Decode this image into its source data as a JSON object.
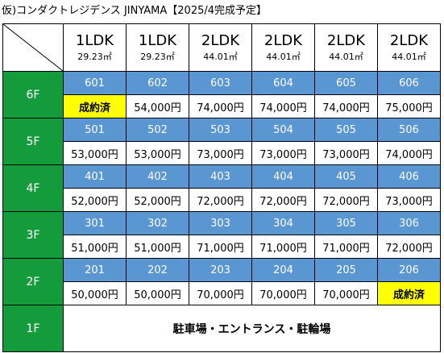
{
  "title": "仮)コンダクトレジデンス JINYAMA【2025/4完成予定】",
  "columns": [
    {
      "layout": "1LDK",
      "area": "29.23㎡"
    },
    {
      "layout": "1LDK",
      "area": "29.23㎡"
    },
    {
      "layout": "2LDK",
      "area": "44.01㎡"
    },
    {
      "layout": "2LDK",
      "area": "44.01㎡"
    },
    {
      "layout": "2LDK",
      "area": "44.01㎡"
    },
    {
      "layout": "2LDK",
      "area": "44.01㎡"
    }
  ],
  "floors": [
    {
      "label": "6F",
      "rooms": [
        "601",
        "602",
        "603",
        "604",
        "605",
        "606"
      ],
      "prices": [
        "成約済",
        "54,000円",
        "74,000円",
        "74,000円",
        "74,000円",
        "75,000円"
      ]
    },
    {
      "label": "5F",
      "rooms": [
        "501",
        "502",
        "503",
        "504",
        "505",
        "506"
      ],
      "prices": [
        "53,000円",
        "53,000円",
        "73,000円",
        "73,000円",
        "73,000円",
        "74,000円"
      ]
    },
    {
      "label": "4F",
      "rooms": [
        "401",
        "402",
        "403",
        "404",
        "405",
        "406"
      ],
      "prices": [
        "52,000円",
        "52,000円",
        "72,000円",
        "72,000円",
        "72,000円",
        "73,000円"
      ]
    },
    {
      "label": "3F",
      "rooms": [
        "301",
        "302",
        "303",
        "304",
        "305",
        "306"
      ],
      "prices": [
        "51,000円",
        "51,000円",
        "71,000円",
        "71,000円",
        "71,000円",
        "72,000円"
      ]
    },
    {
      "label": "2F",
      "rooms": [
        "201",
        "202",
        "203",
        "204",
        "205",
        "206"
      ],
      "prices": [
        "50,000円",
        "50,000円",
        "70,000円",
        "70,000円",
        "70,000円",
        "成約済"
      ]
    }
  ],
  "ground": {
    "label": "1F",
    "text": "駐車場・エントランス・駐輪場"
  },
  "sold_text": "成約済",
  "colors": {
    "floor": "#149c3c",
    "room": "#5a96d2",
    "sold": "#ffff00"
  }
}
